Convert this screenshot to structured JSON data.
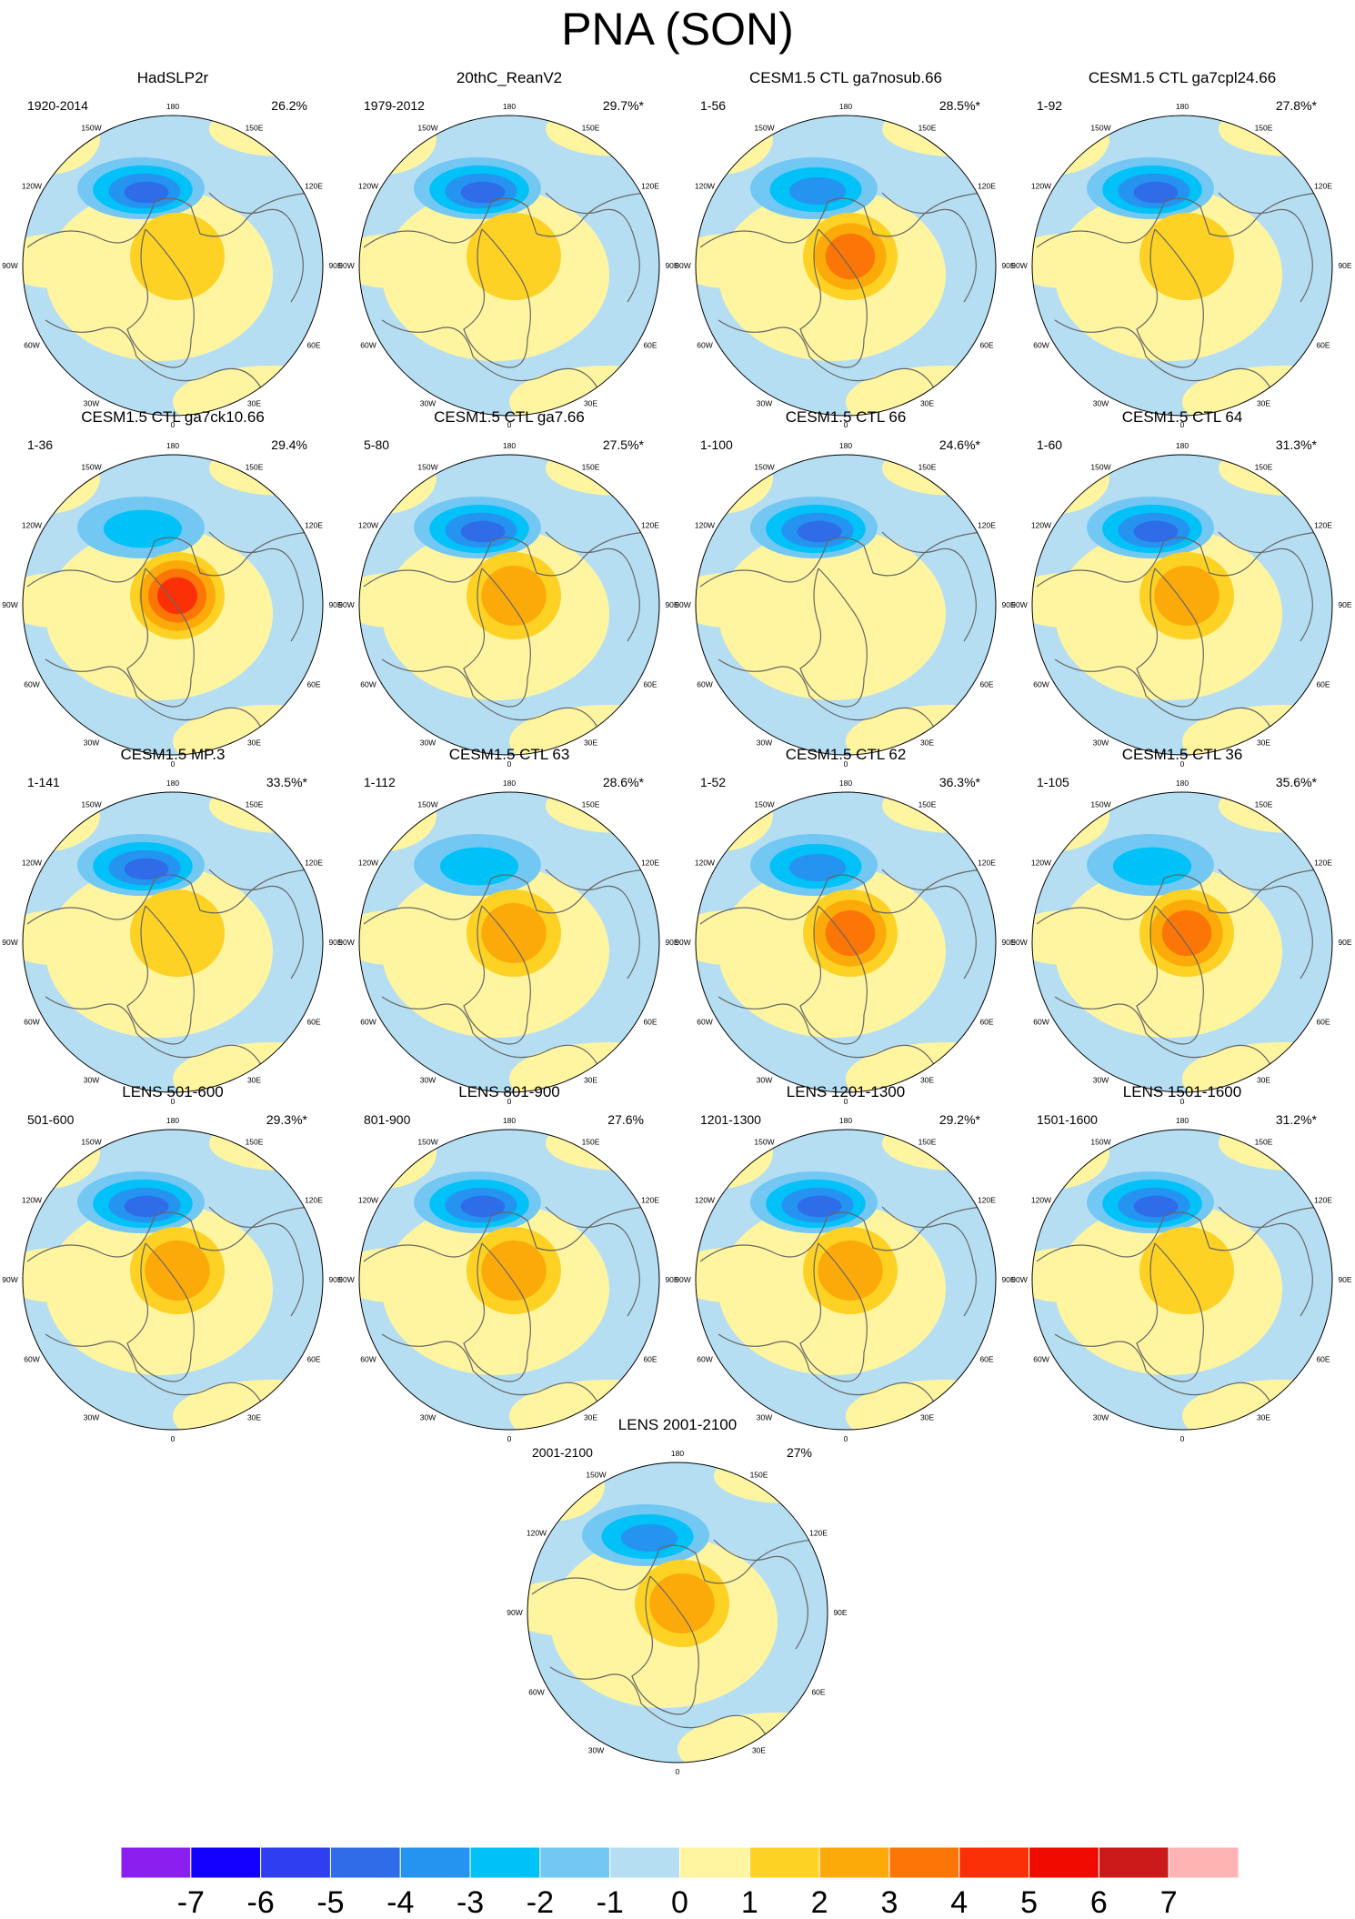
{
  "chart_data": {
    "type": "heatmap",
    "title": "PNA (SON)",
    "projection": "north-polar-stereographic",
    "longitude_labels": [
      "180",
      "150E",
      "120E",
      "90E",
      "60E",
      "30E",
      "0",
      "30W",
      "60W",
      "90W",
      "120W",
      "150W"
    ],
    "panels": [
      {
        "title": "HadSLP2r",
        "period": "1920-2014",
        "variance": "26.2%",
        "peak_negative": -4,
        "peak_positive": 2
      },
      {
        "title": "20thC_ReanV2",
        "period": "1979-2012",
        "variance": "29.7%*",
        "peak_negative": -4,
        "peak_positive": 2
      },
      {
        "title": "CESM1.5 CTL ga7nosub.66",
        "period": "1-56",
        "variance": "28.5%*",
        "peak_negative": -3,
        "peak_positive": 4
      },
      {
        "title": "CESM1.5 CTL ga7cpl24.66",
        "period": "1-92",
        "variance": "27.8%*",
        "peak_negative": -4,
        "peak_positive": 2
      },
      {
        "title": "CESM1.5 CTL ga7ck10.66",
        "period": "1-36",
        "variance": "29.4%",
        "peak_negative": -2,
        "peak_positive": 5
      },
      {
        "title": "CESM1.5 CTL ga7.66",
        "period": "5-80",
        "variance": "27.5%*",
        "peak_negative": -4,
        "peak_positive": 3
      },
      {
        "title": "CESM1.5 CTL 66",
        "period": "1-100",
        "variance": "24.6%*",
        "peak_negative": -4,
        "peak_positive": 1
      },
      {
        "title": "CESM1.5 CTL 64",
        "period": "1-60",
        "variance": "31.3%*",
        "peak_negative": -4,
        "peak_positive": 3
      },
      {
        "title": "CESM1.5 MP.3",
        "period": "1-141",
        "variance": "33.5%*",
        "peak_negative": -4,
        "peak_positive": 2
      },
      {
        "title": "CESM1.5 CTL 63",
        "period": "1-112",
        "variance": "28.6%*",
        "peak_negative": -2,
        "peak_positive": 3
      },
      {
        "title": "CESM1.5 CTL 62",
        "period": "1-52",
        "variance": "36.3%*",
        "peak_negative": -3,
        "peak_positive": 4
      },
      {
        "title": "CESM1.5 CTL 36",
        "period": "1-105",
        "variance": "35.6%*",
        "peak_negative": -2,
        "peak_positive": 4
      },
      {
        "title": "LENS 501-600",
        "period": "501-600",
        "variance": "29.3%*",
        "peak_negative": -4,
        "peak_positive": 3
      },
      {
        "title": "LENS 801-900",
        "period": "801-900",
        "variance": "27.6%",
        "peak_negative": -4,
        "peak_positive": 3
      },
      {
        "title": "LENS 1201-1300",
        "period": "1201-1300",
        "variance": "29.2%*",
        "peak_negative": -4,
        "peak_positive": 3
      },
      {
        "title": "LENS 1501-1600",
        "period": "1501-1600",
        "variance": "31.2%*",
        "peak_negative": -4,
        "peak_positive": 2
      },
      {
        "title": "LENS 2001-2100",
        "period": "2001-2100",
        "variance": "27%",
        "peak_negative": -3,
        "peak_positive": 3
      }
    ],
    "colorbar": {
      "tick_labels": [
        "-7",
        "-6",
        "-5",
        "-4",
        "-3",
        "-2",
        "-1",
        "0",
        "1",
        "2",
        "3",
        "4",
        "5",
        "6",
        "7"
      ],
      "colors": [
        "#8a1ff0",
        "#1400ff",
        "#2d3ff0",
        "#2f6ce8",
        "#2494f0",
        "#00c2f8",
        "#72c8f2",
        "#b6def2",
        "#fff5a0",
        "#fdd224",
        "#fbaa0a",
        "#fb7606",
        "#fb3006",
        "#f00a00",
        "#cc1a1a",
        "#ffb4b4"
      ]
    }
  }
}
